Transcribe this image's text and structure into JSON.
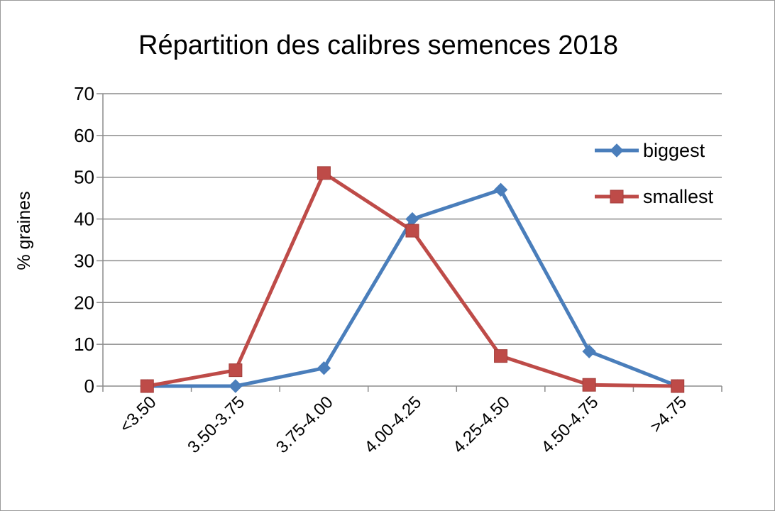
{
  "chart_data": {
    "type": "line",
    "title": "Répartition des calibres semences 2018",
    "xlabel": "",
    "ylabel": "% graines",
    "categories": [
      "<3.50",
      "3.50-3.75",
      "3.75-4.00",
      "4.00-4.25",
      "4.25-4.50",
      "4.50-4.75",
      ">4.75"
    ],
    "ylim": [
      0,
      70
    ],
    "yticks": [
      0,
      10,
      20,
      30,
      40,
      50,
      60,
      70
    ],
    "grid": "horizontal",
    "legend_position": "right",
    "series": [
      {
        "name": "biggest",
        "marker": "diamond",
        "color": "#4a7ebb",
        "values": [
          0,
          0,
          4.3,
          40,
          47,
          8.3,
          0
        ]
      },
      {
        "name": "smallest",
        "marker": "square",
        "color": "#be4b48",
        "values": [
          0,
          3.8,
          51,
          37.2,
          7.2,
          0.3,
          0
        ]
      }
    ]
  }
}
